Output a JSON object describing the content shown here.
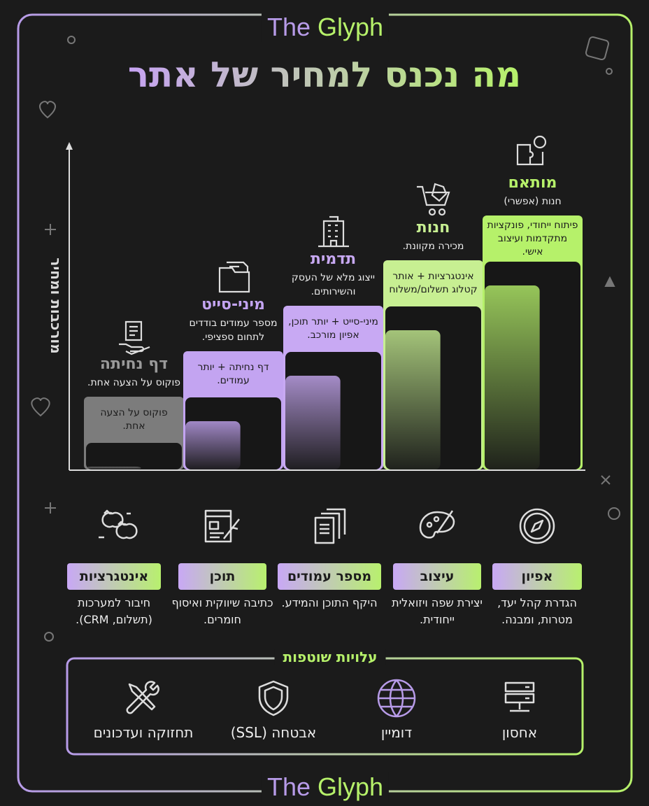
{
  "header": {
    "brand": {
      "first": "The",
      "second": "Glyph"
    },
    "title": "מה נכנס למחיר של אתר"
  },
  "axis_label": "מורכבות ומחיר",
  "tiers": [
    {
      "title": "דף נחיתה",
      "subtitle": "פוקוס על הצעה אחת.",
      "box_text": "פוקוס על הצעה אחת.",
      "color": "#7c7c7c"
    },
    {
      "title": "מיני-סייט",
      "subtitle": "מספר עמודים בודדים לתחום ספציפי.",
      "box_text": "דף נחיתה + יותר עמודים.",
      "color": "#c3a4f1"
    },
    {
      "title": "תדמית",
      "subtitle": "ייצוג מלא של העסק והשירותים.",
      "box_text": "מיני-סייט + יותר תוכן, אפיון מורכב.",
      "color": "#c8a9f3"
    },
    {
      "title": "חנות",
      "subtitle": "מכירה מקוונת.",
      "box_text": "אינטגרציות + אותר קטלוג תשלום/משלוח",
      "color": "#c7ef92"
    },
    {
      "title": "מותאם",
      "subtitle": "חנות (אפשרי)",
      "box_text": "פיתוח ייחודי, פונקציות מתקדמות ועיצוב אישי.",
      "color": "#b6f16a"
    }
  ],
  "factors": [
    {
      "label": "אפיון",
      "description": "הגדרת קהל יעד, מטרות, ומבנה."
    },
    {
      "label": "עיצוב",
      "description": "יצירת שפה ויזואלית ייחודית."
    },
    {
      "label": "מספר עמודים",
      "description": "היקף התוכן והמידע."
    },
    {
      "label": "תוכן",
      "description": "כתיבה שיווקית ואיסוף חומרים."
    },
    {
      "label": "אינטגרציות",
      "description": "חיבור למערכות (תשלום, CRM)."
    }
  ],
  "shared_costs": {
    "title": "עלויות שוטפות",
    "items": [
      "אחסון",
      "דומיין",
      "אבטחה (SSL)",
      "תחזוקה ועדכונים"
    ]
  },
  "footer": {
    "brand": {
      "first": "The",
      "second": "Glyph"
    }
  }
}
